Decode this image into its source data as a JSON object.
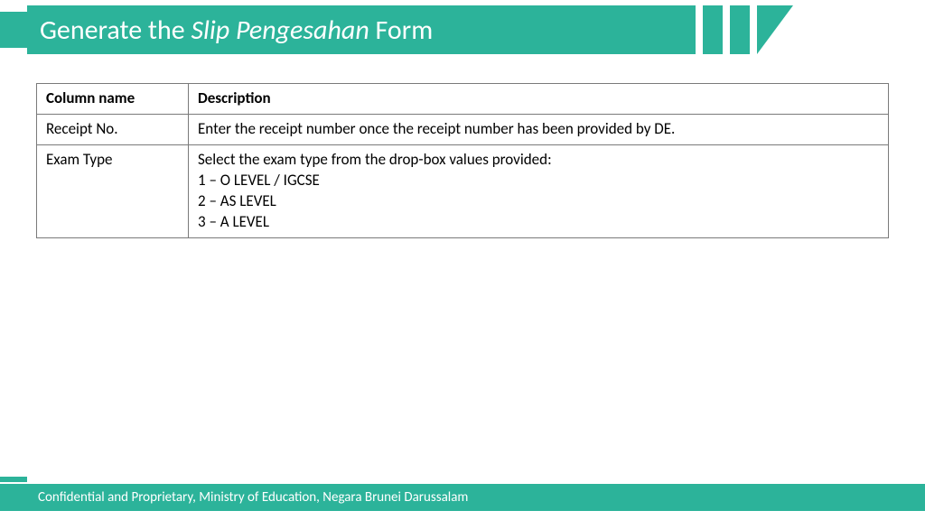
{
  "header": {
    "title_prefix": "Generate the ",
    "title_italic": "Slip Pengesahan",
    "title_suffix": " Form"
  },
  "table": {
    "col_name_header": "Column name",
    "col_desc_header": "Description",
    "rows": [
      {
        "name": "Receipt No.",
        "desc": "Enter the receipt number once the receipt number has been provided by DE."
      },
      {
        "name": "Exam Type",
        "desc": "Select the exam type from the drop-box values provided:\n1 – O LEVEL / IGCSE\n2 – AS LEVEL\n3 – A LEVEL"
      }
    ]
  },
  "footer": {
    "text": "Confidential and Proprietary, Ministry of Education, Negara Brunei Darussalam"
  }
}
